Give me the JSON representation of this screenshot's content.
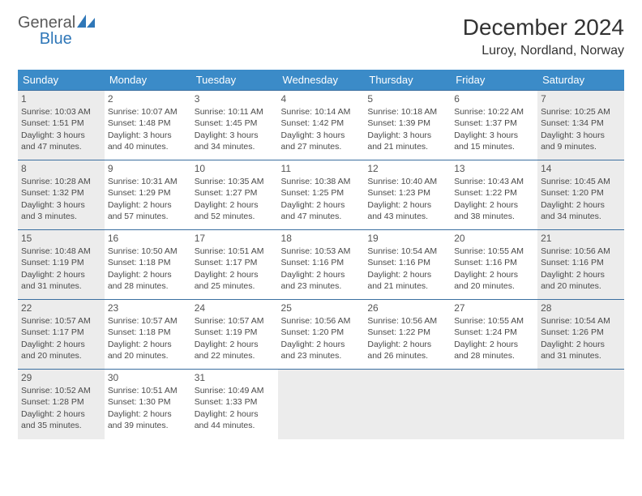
{
  "logo": {
    "word1": "General",
    "word2": "Blue"
  },
  "title": "December 2024",
  "location": "Luroy, Nordland, Norway",
  "colors": {
    "header_bg": "#3b8bc8",
    "header_text": "#ffffff",
    "border": "#3b6fa0",
    "shaded": "#ececec",
    "body_text": "#4a4a4a",
    "logo_gray": "#5a5a5a",
    "logo_blue": "#2f77b8"
  },
  "dow": [
    "Sunday",
    "Monday",
    "Tuesday",
    "Wednesday",
    "Thursday",
    "Friday",
    "Saturday"
  ],
  "weeks": [
    [
      {
        "n": 1,
        "shaded": true,
        "sr": "10:03 AM",
        "ss": "1:51 PM",
        "dl": "3 hours and 47 minutes."
      },
      {
        "n": 2,
        "sr": "10:07 AM",
        "ss": "1:48 PM",
        "dl": "3 hours and 40 minutes."
      },
      {
        "n": 3,
        "sr": "10:11 AM",
        "ss": "1:45 PM",
        "dl": "3 hours and 34 minutes."
      },
      {
        "n": 4,
        "sr": "10:14 AM",
        "ss": "1:42 PM",
        "dl": "3 hours and 27 minutes."
      },
      {
        "n": 5,
        "sr": "10:18 AM",
        "ss": "1:39 PM",
        "dl": "3 hours and 21 minutes."
      },
      {
        "n": 6,
        "sr": "10:22 AM",
        "ss": "1:37 PM",
        "dl": "3 hours and 15 minutes."
      },
      {
        "n": 7,
        "shaded": true,
        "sr": "10:25 AM",
        "ss": "1:34 PM",
        "dl": "3 hours and 9 minutes."
      }
    ],
    [
      {
        "n": 8,
        "shaded": true,
        "sr": "10:28 AM",
        "ss": "1:32 PM",
        "dl": "3 hours and 3 minutes."
      },
      {
        "n": 9,
        "sr": "10:31 AM",
        "ss": "1:29 PM",
        "dl": "2 hours and 57 minutes."
      },
      {
        "n": 10,
        "sr": "10:35 AM",
        "ss": "1:27 PM",
        "dl": "2 hours and 52 minutes."
      },
      {
        "n": 11,
        "sr": "10:38 AM",
        "ss": "1:25 PM",
        "dl": "2 hours and 47 minutes."
      },
      {
        "n": 12,
        "sr": "10:40 AM",
        "ss": "1:23 PM",
        "dl": "2 hours and 43 minutes."
      },
      {
        "n": 13,
        "sr": "10:43 AM",
        "ss": "1:22 PM",
        "dl": "2 hours and 38 minutes."
      },
      {
        "n": 14,
        "shaded": true,
        "sr": "10:45 AM",
        "ss": "1:20 PM",
        "dl": "2 hours and 34 minutes."
      }
    ],
    [
      {
        "n": 15,
        "shaded": true,
        "sr": "10:48 AM",
        "ss": "1:19 PM",
        "dl": "2 hours and 31 minutes."
      },
      {
        "n": 16,
        "sr": "10:50 AM",
        "ss": "1:18 PM",
        "dl": "2 hours and 28 minutes."
      },
      {
        "n": 17,
        "sr": "10:51 AM",
        "ss": "1:17 PM",
        "dl": "2 hours and 25 minutes."
      },
      {
        "n": 18,
        "sr": "10:53 AM",
        "ss": "1:16 PM",
        "dl": "2 hours and 23 minutes."
      },
      {
        "n": 19,
        "sr": "10:54 AM",
        "ss": "1:16 PM",
        "dl": "2 hours and 21 minutes."
      },
      {
        "n": 20,
        "sr": "10:55 AM",
        "ss": "1:16 PM",
        "dl": "2 hours and 20 minutes."
      },
      {
        "n": 21,
        "shaded": true,
        "sr": "10:56 AM",
        "ss": "1:16 PM",
        "dl": "2 hours and 20 minutes."
      }
    ],
    [
      {
        "n": 22,
        "shaded": true,
        "sr": "10:57 AM",
        "ss": "1:17 PM",
        "dl": "2 hours and 20 minutes."
      },
      {
        "n": 23,
        "sr": "10:57 AM",
        "ss": "1:18 PM",
        "dl": "2 hours and 20 minutes."
      },
      {
        "n": 24,
        "sr": "10:57 AM",
        "ss": "1:19 PM",
        "dl": "2 hours and 22 minutes."
      },
      {
        "n": 25,
        "sr": "10:56 AM",
        "ss": "1:20 PM",
        "dl": "2 hours and 23 minutes."
      },
      {
        "n": 26,
        "sr": "10:56 AM",
        "ss": "1:22 PM",
        "dl": "2 hours and 26 minutes."
      },
      {
        "n": 27,
        "sr": "10:55 AM",
        "ss": "1:24 PM",
        "dl": "2 hours and 28 minutes."
      },
      {
        "n": 28,
        "shaded": true,
        "sr": "10:54 AM",
        "ss": "1:26 PM",
        "dl": "2 hours and 31 minutes."
      }
    ],
    [
      {
        "n": 29,
        "shaded": true,
        "sr": "10:52 AM",
        "ss": "1:28 PM",
        "dl": "2 hours and 35 minutes."
      },
      {
        "n": 30,
        "sr": "10:51 AM",
        "ss": "1:30 PM",
        "dl": "2 hours and 39 minutes."
      },
      {
        "n": 31,
        "sr": "10:49 AM",
        "ss": "1:33 PM",
        "dl": "2 hours and 44 minutes."
      },
      null,
      null,
      null,
      null
    ]
  ],
  "labels": {
    "sunrise": "Sunrise: ",
    "sunset": "Sunset: ",
    "daylight": "Daylight: "
  }
}
